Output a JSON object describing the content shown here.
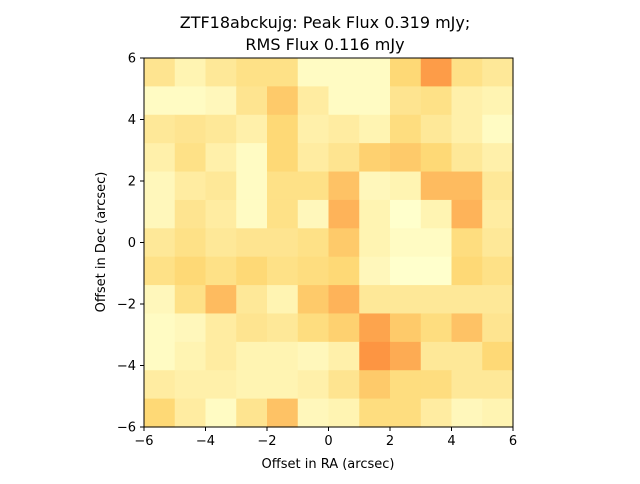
{
  "chart_data": {
    "type": "heatmap",
    "title_line1": "ZTF18abckujg: Peak Flux 0.319 mJy;",
    "title_line2": "RMS Flux 0.116 mJy",
    "xlabel": "Offset in RA (arcsec)",
    "ylabel": "Offset in Dec (arcsec)",
    "xlim": [
      -6,
      6
    ],
    "ylim": [
      -6,
      6
    ],
    "xticks": [
      -6,
      -4,
      -2,
      0,
      2,
      4,
      6
    ],
    "yticks": [
      -6,
      -4,
      -2,
      0,
      2,
      4,
      6
    ],
    "xtick_labels": [
      "−6",
      "−4",
      "−2",
      "0",
      "2",
      "4",
      "6"
    ],
    "ytick_labels": [
      "−6",
      "−4",
      "−2",
      "0",
      "2",
      "4",
      "6"
    ],
    "colormap": {
      "low": "#ffffcc",
      "mid": "#fed976",
      "high": "#fd8d3c"
    },
    "grid": false,
    "value_range": [
      0,
      1
    ],
    "values": [
      [
        0.35,
        0.15,
        0.3,
        0.4,
        0.4,
        0.05,
        0.05,
        0.05,
        0.5,
        0.9,
        0.4,
        0.3
      ],
      [
        0.05,
        0.05,
        0.1,
        0.35,
        0.6,
        0.25,
        0.05,
        0.05,
        0.35,
        0.4,
        0.2,
        0.15
      ],
      [
        0.3,
        0.35,
        0.3,
        0.2,
        0.5,
        0.2,
        0.25,
        0.15,
        0.45,
        0.3,
        0.2,
        0.05
      ],
      [
        0.2,
        0.4,
        0.2,
        0.05,
        0.5,
        0.25,
        0.35,
        0.55,
        0.6,
        0.5,
        0.3,
        0.2
      ],
      [
        0.1,
        0.25,
        0.3,
        0.05,
        0.4,
        0.4,
        0.65,
        0.1,
        0.15,
        0.7,
        0.7,
        0.3
      ],
      [
        0.1,
        0.35,
        0.25,
        0.05,
        0.4,
        0.1,
        0.75,
        0.15,
        0.0,
        0.15,
        0.75,
        0.25
      ],
      [
        0.3,
        0.4,
        0.3,
        0.35,
        0.35,
        0.4,
        0.6,
        0.15,
        0.05,
        0.05,
        0.45,
        0.3
      ],
      [
        0.4,
        0.5,
        0.4,
        0.5,
        0.4,
        0.45,
        0.5,
        0.1,
        0.0,
        0.0,
        0.5,
        0.4
      ],
      [
        0.1,
        0.4,
        0.7,
        0.3,
        0.15,
        0.6,
        0.75,
        0.3,
        0.3,
        0.3,
        0.3,
        0.3
      ],
      [
        0.05,
        0.1,
        0.25,
        0.35,
        0.3,
        0.45,
        0.55,
        0.85,
        0.6,
        0.45,
        0.65,
        0.35
      ],
      [
        0.05,
        0.15,
        0.25,
        0.15,
        0.15,
        0.1,
        0.2,
        0.95,
        0.8,
        0.3,
        0.3,
        0.5
      ],
      [
        0.25,
        0.2,
        0.2,
        0.15,
        0.15,
        0.2,
        0.35,
        0.6,
        0.45,
        0.45,
        0.3,
        0.3
      ],
      [
        0.5,
        0.25,
        0.05,
        0.35,
        0.65,
        0.1,
        0.15,
        0.45,
        0.45,
        0.25,
        0.1,
        0.15
      ]
    ]
  }
}
